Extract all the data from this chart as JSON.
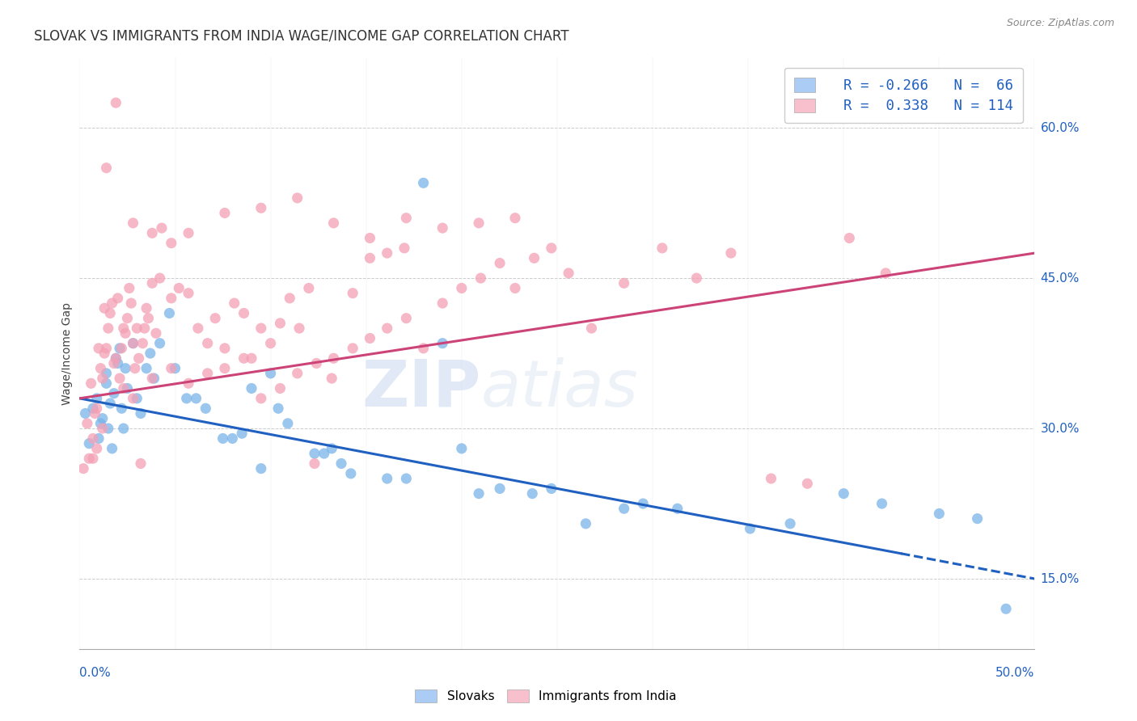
{
  "title": "SLOVAK VS IMMIGRANTS FROM INDIA WAGE/INCOME GAP CORRELATION CHART",
  "source": "Source: ZipAtlas.com",
  "ylabel": "Wage/Income Gap",
  "right_yticks": [
    15.0,
    30.0,
    45.0,
    60.0
  ],
  "xmin": 0.0,
  "xmax": 50.0,
  "ymin": 8.0,
  "ymax": 67.0,
  "watermark": "ZIPatlas",
  "blue_color": "#7ab3e8",
  "pink_color": "#f4a0b5",
  "blue_fill": "#aaccf5",
  "pink_fill": "#f8c0cc",
  "trend_blue": "#2060c0",
  "trend_pink": "#cc4477",
  "blue_trend_start_x": 0.0,
  "blue_trend_start_y": 33.0,
  "blue_trend_end_x": 50.0,
  "blue_trend_end_y": 15.0,
  "blue_solid_end_x": 43.0,
  "pink_trend_start_x": 0.0,
  "pink_trend_start_y": 33.0,
  "pink_trend_end_x": 50.0,
  "pink_trend_end_y": 47.5,
  "blue_dots": [
    [
      0.3,
      31.5
    ],
    [
      0.5,
      28.5
    ],
    [
      0.7,
      32.0
    ],
    [
      0.9,
      33.0
    ],
    [
      1.0,
      29.0
    ],
    [
      1.1,
      30.5
    ],
    [
      1.2,
      31.0
    ],
    [
      1.4,
      34.5
    ],
    [
      1.4,
      35.5
    ],
    [
      1.5,
      30.0
    ],
    [
      1.6,
      32.5
    ],
    [
      1.7,
      28.0
    ],
    [
      1.8,
      33.5
    ],
    [
      1.9,
      37.0
    ],
    [
      2.0,
      36.5
    ],
    [
      2.1,
      38.0
    ],
    [
      2.2,
      32.0
    ],
    [
      2.3,
      30.0
    ],
    [
      2.4,
      36.0
    ],
    [
      2.5,
      34.0
    ],
    [
      2.8,
      38.5
    ],
    [
      3.0,
      33.0
    ],
    [
      3.2,
      31.5
    ],
    [
      3.5,
      36.0
    ],
    [
      3.7,
      37.5
    ],
    [
      3.9,
      35.0
    ],
    [
      4.2,
      38.5
    ],
    [
      4.7,
      41.5
    ],
    [
      5.0,
      36.0
    ],
    [
      5.6,
      33.0
    ],
    [
      6.1,
      33.0
    ],
    [
      6.6,
      32.0
    ],
    [
      7.5,
      29.0
    ],
    [
      8.0,
      29.0
    ],
    [
      8.5,
      29.5
    ],
    [
      9.0,
      34.0
    ],
    [
      9.5,
      26.0
    ],
    [
      10.0,
      35.5
    ],
    [
      10.4,
      32.0
    ],
    [
      10.9,
      30.5
    ],
    [
      12.3,
      27.5
    ],
    [
      12.8,
      27.5
    ],
    [
      13.2,
      28.0
    ],
    [
      13.7,
      26.5
    ],
    [
      14.2,
      25.5
    ],
    [
      16.1,
      25.0
    ],
    [
      17.1,
      25.0
    ],
    [
      18.0,
      54.5
    ],
    [
      19.0,
      38.5
    ],
    [
      20.0,
      28.0
    ],
    [
      20.9,
      23.5
    ],
    [
      22.0,
      24.0
    ],
    [
      23.7,
      23.5
    ],
    [
      24.7,
      24.0
    ],
    [
      26.5,
      20.5
    ],
    [
      28.5,
      22.0
    ],
    [
      29.5,
      22.5
    ],
    [
      31.3,
      22.0
    ],
    [
      35.1,
      20.0
    ],
    [
      37.2,
      20.5
    ],
    [
      40.0,
      23.5
    ],
    [
      42.0,
      22.5
    ],
    [
      45.0,
      21.5
    ],
    [
      47.0,
      21.0
    ],
    [
      48.5,
      12.0
    ]
  ],
  "pink_dots": [
    [
      0.2,
      26.0
    ],
    [
      0.4,
      30.5
    ],
    [
      0.5,
      27.0
    ],
    [
      0.6,
      34.5
    ],
    [
      0.7,
      29.0
    ],
    [
      0.8,
      31.5
    ],
    [
      0.9,
      28.0
    ],
    [
      1.0,
      38.0
    ],
    [
      1.1,
      36.0
    ],
    [
      1.2,
      35.0
    ],
    [
      1.3,
      37.5
    ],
    [
      1.3,
      42.0
    ],
    [
      1.4,
      38.0
    ],
    [
      1.5,
      40.0
    ],
    [
      1.6,
      41.5
    ],
    [
      1.7,
      42.5
    ],
    [
      1.8,
      36.5
    ],
    [
      1.9,
      37.0
    ],
    [
      2.0,
      43.0
    ],
    [
      2.1,
      35.0
    ],
    [
      2.2,
      38.0
    ],
    [
      2.3,
      40.0
    ],
    [
      2.4,
      39.5
    ],
    [
      2.5,
      41.0
    ],
    [
      2.6,
      44.0
    ],
    [
      2.7,
      42.5
    ],
    [
      2.8,
      38.5
    ],
    [
      2.9,
      36.0
    ],
    [
      3.0,
      40.0
    ],
    [
      3.1,
      37.0
    ],
    [
      3.2,
      26.5
    ],
    [
      3.3,
      38.5
    ],
    [
      3.4,
      40.0
    ],
    [
      3.5,
      42.0
    ],
    [
      3.6,
      41.0
    ],
    [
      3.8,
      44.5
    ],
    [
      4.0,
      39.5
    ],
    [
      4.2,
      45.0
    ],
    [
      4.8,
      43.0
    ],
    [
      5.2,
      44.0
    ],
    [
      5.7,
      43.5
    ],
    [
      6.2,
      40.0
    ],
    [
      6.7,
      38.5
    ],
    [
      7.1,
      41.0
    ],
    [
      7.6,
      38.0
    ],
    [
      8.1,
      42.5
    ],
    [
      8.6,
      41.5
    ],
    [
      9.0,
      37.0
    ],
    [
      9.5,
      40.0
    ],
    [
      10.0,
      38.5
    ],
    [
      10.5,
      40.5
    ],
    [
      11.0,
      43.0
    ],
    [
      11.5,
      40.0
    ],
    [
      12.0,
      44.0
    ],
    [
      12.3,
      26.5
    ],
    [
      13.2,
      35.0
    ],
    [
      14.3,
      43.5
    ],
    [
      15.2,
      47.0
    ],
    [
      16.1,
      47.5
    ],
    [
      17.0,
      48.0
    ],
    [
      18.0,
      38.0
    ],
    [
      19.0,
      42.5
    ],
    [
      20.0,
      44.0
    ],
    [
      21.0,
      45.0
    ],
    [
      22.0,
      46.5
    ],
    [
      22.8,
      44.0
    ],
    [
      23.8,
      47.0
    ],
    [
      24.7,
      48.0
    ],
    [
      25.6,
      45.5
    ],
    [
      26.8,
      40.0
    ],
    [
      28.5,
      44.5
    ],
    [
      30.5,
      48.0
    ],
    [
      32.3,
      45.0
    ],
    [
      34.1,
      47.5
    ],
    [
      36.2,
      25.0
    ],
    [
      38.1,
      24.5
    ],
    [
      40.3,
      49.0
    ],
    [
      42.2,
      45.5
    ],
    [
      1.9,
      62.5
    ],
    [
      1.4,
      56.0
    ],
    [
      3.8,
      49.5
    ],
    [
      2.8,
      50.5
    ],
    [
      4.3,
      50.0
    ],
    [
      4.8,
      48.5
    ],
    [
      5.7,
      49.5
    ],
    [
      7.6,
      51.5
    ],
    [
      9.5,
      52.0
    ],
    [
      11.4,
      53.0
    ],
    [
      13.3,
      50.5
    ],
    [
      15.2,
      49.0
    ],
    [
      17.1,
      51.0
    ],
    [
      19.0,
      50.0
    ],
    [
      20.9,
      50.5
    ],
    [
      22.8,
      51.0
    ],
    [
      0.7,
      27.0
    ],
    [
      0.9,
      32.0
    ],
    [
      1.2,
      30.0
    ],
    [
      2.3,
      34.0
    ],
    [
      2.8,
      33.0
    ],
    [
      3.8,
      35.0
    ],
    [
      4.8,
      36.0
    ],
    [
      5.7,
      34.5
    ],
    [
      6.7,
      35.5
    ],
    [
      7.6,
      36.0
    ],
    [
      8.6,
      37.0
    ],
    [
      9.5,
      33.0
    ],
    [
      10.5,
      34.0
    ],
    [
      11.4,
      35.5
    ],
    [
      12.4,
      36.5
    ],
    [
      13.3,
      37.0
    ],
    [
      14.3,
      38.0
    ],
    [
      15.2,
      39.0
    ],
    [
      16.1,
      40.0
    ],
    [
      17.1,
      41.0
    ]
  ]
}
